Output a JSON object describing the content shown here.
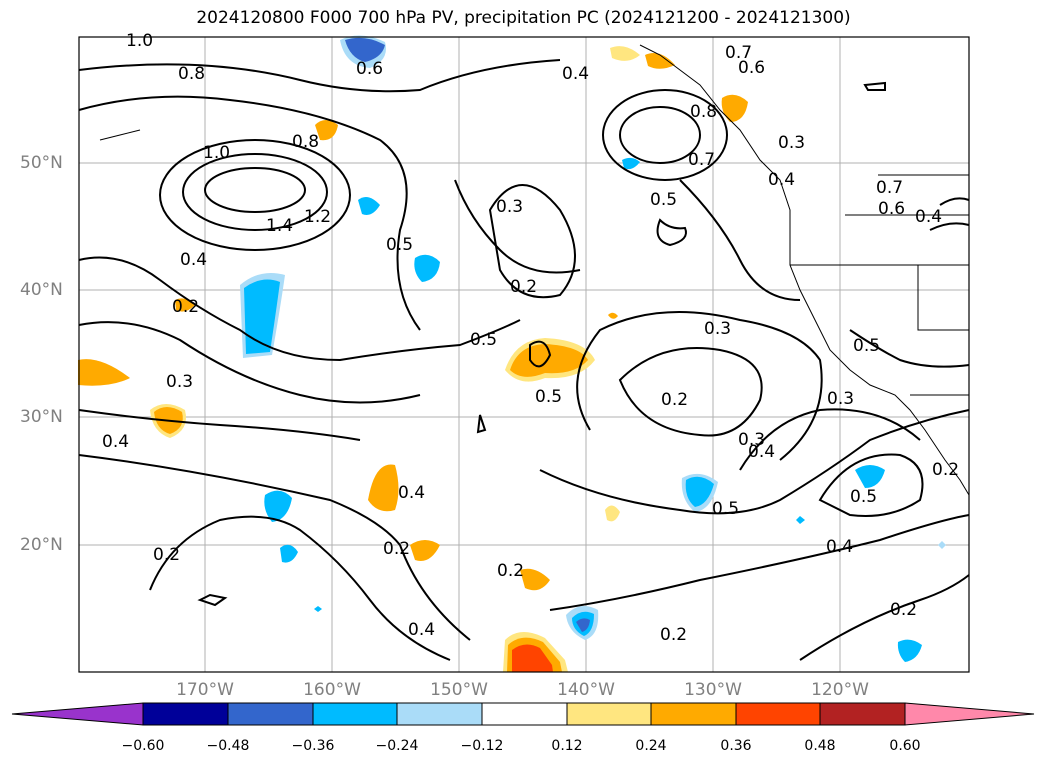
{
  "title": "2024120800 F000 700 hPa PV, precipitation PC (2024121200 - 2024121300)",
  "map": {
    "lat_labels": [
      "50°N",
      "40°N",
      "30°N",
      "20°N"
    ],
    "lon_labels": [
      "170°W",
      "160°W",
      "150°W",
      "140°W",
      "130°W",
      "120°W"
    ],
    "contour_labels": [
      "1.0",
      "0.8",
      "0.6",
      "0.4",
      "0.7",
      "0.6",
      "0.8",
      "1.0",
      "0.8",
      "0.3",
      "0.7",
      "0.4",
      "0.7",
      "0.6",
      "0.4",
      "1.4",
      "1.2",
      "0.5",
      "0.3",
      "0.5",
      "0.4",
      "0.2",
      "0.2",
      "0.3",
      "0.5",
      "0.3",
      "0.5",
      "0.3",
      "0.2",
      "0.5",
      "0.4",
      "0.4",
      "0.3",
      "0.2",
      "0.4",
      "0.5",
      "0.5",
      "0.2",
      "0.4",
      "0.2",
      "0.2",
      "0.2",
      "0.4",
      "0.2"
    ]
  },
  "colorbar": {
    "colors": [
      "#9933cc",
      "#000099",
      "#3366cc",
      "#00bbff",
      "#aadcf8",
      "#ffffff",
      "#ffe680",
      "#ffaa00",
      "#ff4400",
      "#b22222",
      "#ff88aa"
    ],
    "tick_labels": [
      "−0.60",
      "−0.48",
      "−0.36",
      "−0.24",
      "−0.12",
      "0.12",
      "0.24",
      "0.36",
      "0.48",
      "0.60"
    ]
  }
}
